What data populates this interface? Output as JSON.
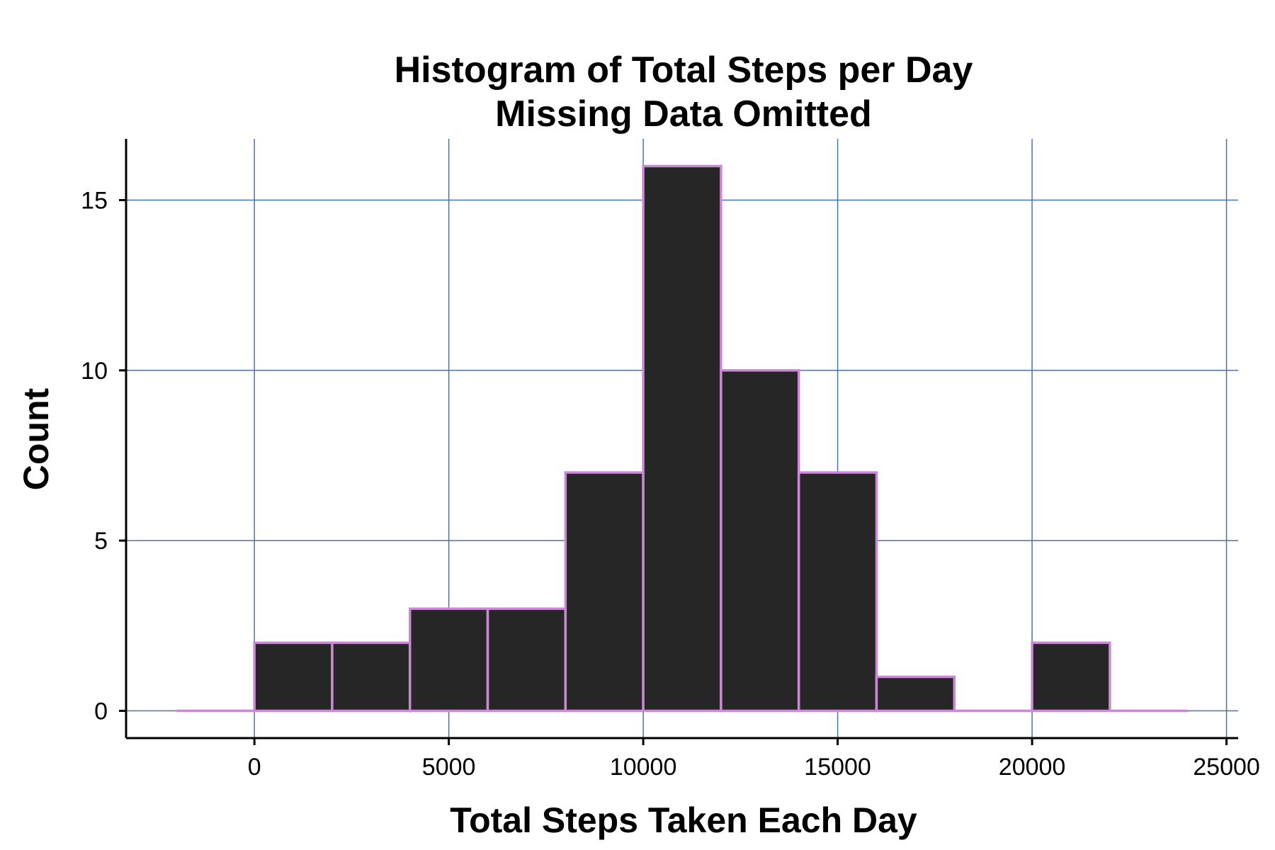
{
  "chart_data": {
    "type": "bar",
    "title": "Histogram of Total Steps per Day",
    "subtitle": "Missing Data Omitted",
    "xlabel": "Total Steps Taken Each Day",
    "ylabel": "Count",
    "bin_width": 2000,
    "bins": [
      {
        "start": -2000,
        "end": 0,
        "count": 0
      },
      {
        "start": 0,
        "end": 2000,
        "count": 2
      },
      {
        "start": 2000,
        "end": 4000,
        "count": 2
      },
      {
        "start": 4000,
        "end": 6000,
        "count": 3
      },
      {
        "start": 6000,
        "end": 8000,
        "count": 3
      },
      {
        "start": 8000,
        "end": 10000,
        "count": 7
      },
      {
        "start": 10000,
        "end": 12000,
        "count": 16
      },
      {
        "start": 12000,
        "end": 14000,
        "count": 10
      },
      {
        "start": 14000,
        "end": 16000,
        "count": 7
      },
      {
        "start": 16000,
        "end": 18000,
        "count": 1
      },
      {
        "start": 18000,
        "end": 20000,
        "count": 0
      },
      {
        "start": 20000,
        "end": 22000,
        "count": 2
      },
      {
        "start": 22000,
        "end": 24000,
        "count": 0
      }
    ],
    "xlim": [
      -3300,
      25300
    ],
    "ylim": [
      -0.8,
      16.8
    ],
    "x_ticks": [
      0,
      5000,
      10000,
      15000,
      20000,
      25000
    ],
    "y_ticks": [
      0,
      5,
      10,
      15
    ],
    "grid": true,
    "colors": {
      "bar_fill": "#262626",
      "bar_outline": "#cc88d6",
      "grid": "#4d72a8",
      "axis": "#000000"
    }
  }
}
